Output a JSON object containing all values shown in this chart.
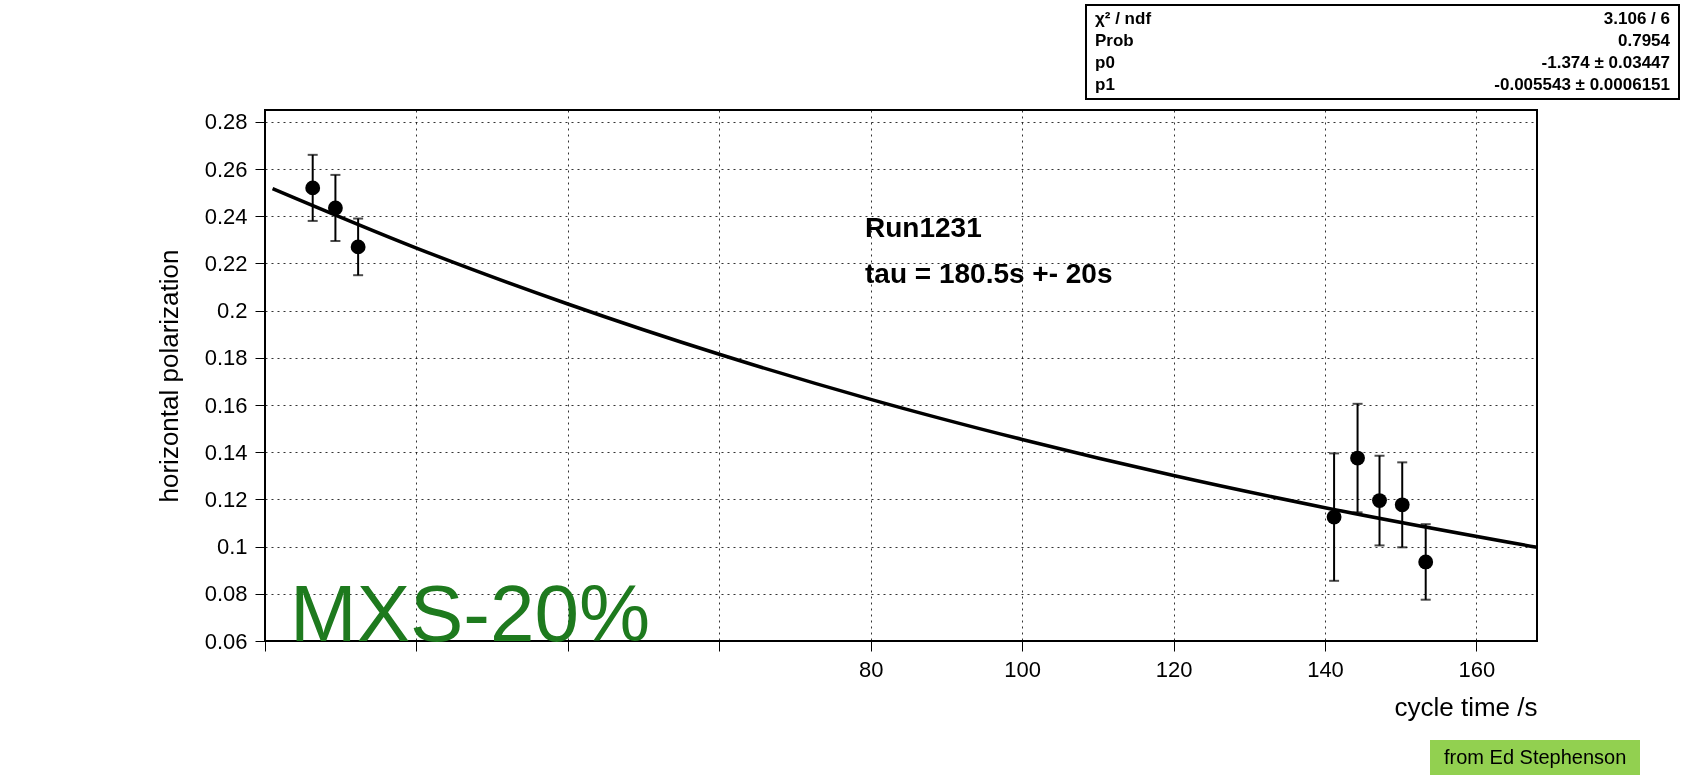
{
  "chart_data": {
    "type": "scatter",
    "xlabel": "cycle time /s",
    "ylabel": "horizontal polarization",
    "xlim": [
      0,
      168
    ],
    "ylim": [
      0.06,
      0.285
    ],
    "xticks": [
      {
        "value": 0,
        "label": null
      },
      {
        "value": 20,
        "label": null
      },
      {
        "value": 40,
        "label": null
      },
      {
        "value": 60,
        "label": null
      },
      80,
      100,
      120,
      140,
      160
    ],
    "yticks": [
      0.06,
      0.08,
      0.1,
      0.12,
      0.14,
      0.16,
      0.18,
      0.2,
      0.22,
      0.24,
      0.26,
      0.28
    ],
    "grid": true,
    "series": [
      {
        "marker": "circle",
        "color": "#000000",
        "x": [
          6.3,
          9.3,
          12.3,
          141.2,
          144.3,
          147.2,
          150.2,
          153.3
        ],
        "values": [
          0.252,
          0.2435,
          0.227,
          0.1125,
          0.1375,
          0.1195,
          0.1177,
          0.0935
        ],
        "errors": [
          0.014,
          0.014,
          0.012,
          0.027,
          0.023,
          0.019,
          0.018,
          0.016
        ]
      },
      {
        "type": "line",
        "color": "#000000",
        "x": [
          1,
          20,
          40,
          60,
          80,
          100,
          120,
          140,
          168
        ],
        "values": [
          0.2517,
          0.2265,
          0.2028,
          0.1815,
          0.1624,
          0.1454,
          0.1301,
          0.1165,
          0.0997
        ]
      }
    ],
    "annotations": [
      "χ² / ndf",
      "3.106 / 6",
      "Prob",
      "0.7954",
      "p0",
      "-1.374 ± 0.03447",
      "p1",
      "-0.005543 ± 0.0006151",
      "Run1231",
      "tau = 180.5s +- 20s",
      "MXS-20%",
      "from Ed Stephenson"
    ]
  }
}
